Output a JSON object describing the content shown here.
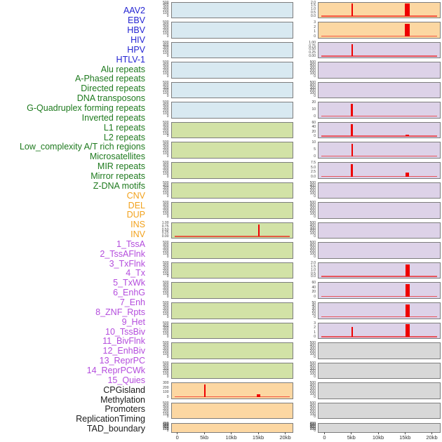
{
  "colors": {
    "category_text": {
      "virus": "#2525d2",
      "repeat": "#1e7a1e",
      "sv": "#f2a21d",
      "chromhmm": "#b44ddd",
      "other": "#1b1b1b"
    },
    "panel_bg": {
      "virus": "#d8e9f1",
      "repeat": "#d2e2a6",
      "sv": "#fcd7a2",
      "chromhmm": "#ddd2e8",
      "other": "#d8d8d8"
    },
    "signal": "#ee0000",
    "baseline": "rgba(238,0,0,0.6)",
    "panel_border": "#7d7d7d",
    "axis_text": "#3f3f3f"
  },
  "row_labels": [
    {
      "text": "AAV2",
      "category": "virus"
    },
    {
      "text": "EBV",
      "category": "virus"
    },
    {
      "text": "HBV",
      "category": "virus"
    },
    {
      "text": "HIV",
      "category": "virus"
    },
    {
      "text": "HPV",
      "category": "virus"
    },
    {
      "text": "HTLV-1",
      "category": "virus"
    },
    {
      "text": "Alu repeats",
      "category": "repeat"
    },
    {
      "text": "A-Phased repeats",
      "category": "repeat"
    },
    {
      "text": "Directed repeats",
      "category": "repeat"
    },
    {
      "text": "DNA transposons",
      "category": "repeat"
    },
    {
      "text": "G-Quadruplex forming repeats",
      "category": "repeat"
    },
    {
      "text": "Inverted repeats",
      "category": "repeat"
    },
    {
      "text": "L1 repeats",
      "category": "repeat"
    },
    {
      "text": "L2 repeats",
      "category": "repeat"
    },
    {
      "text": "Low_complexity A/T rich regions",
      "category": "repeat"
    },
    {
      "text": "Microsatellites",
      "category": "repeat"
    },
    {
      "text": "MIR repeats",
      "category": "repeat"
    },
    {
      "text": "Mirror repeats",
      "category": "repeat"
    },
    {
      "text": "Z-DNA motifs",
      "category": "repeat"
    },
    {
      "text": "CNV",
      "category": "sv"
    },
    {
      "text": "DEL",
      "category": "sv"
    },
    {
      "text": "DUP",
      "category": "sv"
    },
    {
      "text": "INS",
      "category": "sv"
    },
    {
      "text": "INV",
      "category": "sv"
    },
    {
      "text": "1_TssA",
      "category": "chromhmm"
    },
    {
      "text": "2_TssAFlnk",
      "category": "chromhmm"
    },
    {
      "text": "3_TxFlnk",
      "category": "chromhmm"
    },
    {
      "text": "4_Tx",
      "category": "chromhmm"
    },
    {
      "text": "5_TxWk",
      "category": "chromhmm"
    },
    {
      "text": "6_EnhG",
      "category": "chromhmm"
    },
    {
      "text": "7_Enh",
      "category": "chromhmm"
    },
    {
      "text": "8_ZNF_Rpts",
      "category": "chromhmm"
    },
    {
      "text": "9_Het",
      "category": "chromhmm"
    },
    {
      "text": "10_TssBiv",
      "category": "chromhmm"
    },
    {
      "text": "11_BivFlnk",
      "category": "chromhmm"
    },
    {
      "text": "12_EnhBiv",
      "category": "chromhmm"
    },
    {
      "text": "13_ReprPC",
      "category": "chromhmm"
    },
    {
      "text": "14_ReprPCWk",
      "category": "chromhmm"
    },
    {
      "text": "15_Quies",
      "category": "chromhmm"
    },
    {
      "text": "CPGisland",
      "category": "other"
    },
    {
      "text": "Methylation",
      "category": "other"
    },
    {
      "text": "Promoters",
      "category": "other"
    },
    {
      "text": "ReplicationTiming",
      "category": "other"
    },
    {
      "text": "TAD_boundary",
      "category": "other"
    }
  ],
  "chart_data": {
    "type": "bar",
    "description": "Two columns of 22 genomic signal mini-tracks (column-major order over the 44 row labels); red spikes mark signal peaks near 5kb and 15kb",
    "x_axis": {
      "tick_labels": [
        "0",
        "5kb",
        "10kb",
        "15kb",
        "20kb"
      ],
      "tick_kb": [
        0,
        5,
        10,
        15,
        20
      ],
      "range_kb": [
        0,
        20
      ]
    },
    "panels": [
      {
        "feature": "AAV2",
        "col": 0,
        "row": 1,
        "category": "virus",
        "y_ticks": [
          "500",
          "400",
          "300",
          "200",
          "100",
          "0"
        ],
        "baseline": false,
        "peaks": []
      },
      {
        "feature": "EBV",
        "col": 0,
        "row": 2,
        "category": "virus",
        "y_ticks": [
          "500",
          "400",
          "300",
          "200",
          "100",
          "0"
        ],
        "baseline": false,
        "peaks": []
      },
      {
        "feature": "HBV",
        "col": 0,
        "row": 3,
        "category": "virus",
        "y_ticks": [
          "500",
          "400",
          "300",
          "200",
          "100",
          "0"
        ],
        "baseline": false,
        "peaks": []
      },
      {
        "feature": "HIV",
        "col": 0,
        "row": 4,
        "category": "virus",
        "y_ticks": [
          "500",
          "400",
          "300",
          "200",
          "100",
          "0"
        ],
        "baseline": false,
        "peaks": []
      },
      {
        "feature": "HPV",
        "col": 0,
        "row": 5,
        "category": "virus",
        "y_ticks": [
          "500",
          "400",
          "300",
          "200",
          "100",
          "0"
        ],
        "baseline": false,
        "peaks": []
      },
      {
        "feature": "HTLV-1",
        "col": 0,
        "row": 6,
        "category": "virus",
        "y_ticks": [
          "500",
          "400",
          "300",
          "200",
          "100",
          "0"
        ],
        "baseline": false,
        "peaks": []
      },
      {
        "feature": "Alu repeats",
        "col": 0,
        "row": 7,
        "category": "repeat",
        "y_ticks": [
          "500",
          "400",
          "300",
          "200",
          "100",
          "0"
        ],
        "baseline": false,
        "peaks": []
      },
      {
        "feature": "A-Phased repeats",
        "col": 0,
        "row": 8,
        "category": "repeat",
        "y_ticks": [
          "500",
          "400",
          "300",
          "200",
          "100",
          "0"
        ],
        "baseline": false,
        "peaks": []
      },
      {
        "feature": "Directed repeats",
        "col": 0,
        "row": 9,
        "category": "repeat",
        "y_ticks": [
          "500",
          "400",
          "300",
          "200",
          "100",
          "0"
        ],
        "baseline": false,
        "peaks": []
      },
      {
        "feature": "DNA transposons",
        "col": 0,
        "row": 10,
        "category": "repeat",
        "y_ticks": [
          "500",
          "400",
          "300",
          "200",
          "100",
          "0"
        ],
        "baseline": false,
        "peaks": []
      },
      {
        "feature": "G-Quadruplex forming repeats",
        "col": 0,
        "row": 11,
        "category": "repeat",
        "y_ticks": [
          "500",
          "400",
          "300",
          "200",
          "100",
          "0"
        ],
        "baseline": false,
        "peaks": []
      },
      {
        "feature": "Inverted repeats",
        "col": 0,
        "row": 12,
        "category": "repeat",
        "y_ticks": [
          "1.00",
          "0.75",
          "0.50",
          "0.25",
          "0.00"
        ],
        "baseline": true,
        "peaks": [
          {
            "kb": 15.1,
            "value": 0.95,
            "frac": 0.95,
            "w": 2.5
          }
        ]
      },
      {
        "feature": "L1 repeats",
        "col": 0,
        "row": 13,
        "category": "repeat",
        "y_ticks": [
          "500",
          "400",
          "300",
          "200",
          "100",
          "0"
        ],
        "baseline": false,
        "peaks": []
      },
      {
        "feature": "L2 repeats",
        "col": 0,
        "row": 14,
        "category": "repeat",
        "y_ticks": [
          "500",
          "400",
          "300",
          "200",
          "100",
          "0"
        ],
        "baseline": false,
        "peaks": []
      },
      {
        "feature": "Low_complexity A/T rich regions",
        "col": 0,
        "row": 15,
        "category": "repeat",
        "y_ticks": [
          "500",
          "400",
          "300",
          "200",
          "100",
          "0"
        ],
        "baseline": false,
        "peaks": []
      },
      {
        "feature": "Microsatellites",
        "col": 0,
        "row": 16,
        "category": "repeat",
        "y_ticks": [
          "500",
          "400",
          "300",
          "200",
          "100",
          "0"
        ],
        "baseline": false,
        "peaks": []
      },
      {
        "feature": "MIR repeats",
        "col": 0,
        "row": 17,
        "category": "repeat",
        "y_ticks": [
          "500",
          "400",
          "300",
          "200",
          "100",
          "0"
        ],
        "baseline": false,
        "peaks": []
      },
      {
        "feature": "Mirror repeats",
        "col": 0,
        "row": 18,
        "category": "repeat",
        "y_ticks": [
          "500",
          "400",
          "300",
          "200",
          "100",
          "0"
        ],
        "baseline": false,
        "peaks": []
      },
      {
        "feature": "Z-DNA motifs",
        "col": 0,
        "row": 19,
        "category": "repeat",
        "y_ticks": [
          "500",
          "400",
          "300",
          "200",
          "100",
          "0"
        ],
        "baseline": false,
        "peaks": []
      },
      {
        "feature": "CNV",
        "col": 0,
        "row": 20,
        "category": "sv",
        "y_ticks": [
          "300",
          "200",
          "100",
          "0"
        ],
        "baseline": true,
        "peaks": [
          {
            "kb": 5.1,
            "value": 290,
            "frac": 0.95,
            "w": 2.5
          },
          {
            "kb": 15.1,
            "value": 63,
            "frac": 0.21,
            "w": 5
          }
        ]
      },
      {
        "feature": "DEL",
        "col": 0,
        "row": 21,
        "category": "sv",
        "y_ticks": [
          "500",
          "400",
          "300",
          "200",
          "100",
          "0"
        ],
        "baseline": false,
        "peaks": []
      },
      {
        "feature": "DUP",
        "col": 0,
        "row": 22,
        "category": "sv",
        "y_ticks": [
          "700",
          "600",
          "500",
          "400",
          "300",
          "200",
          "100",
          "0"
        ],
        "baseline": false,
        "peaks": []
      },
      {
        "feature": "INS",
        "col": 1,
        "row": 1,
        "category": "sv",
        "y_ticks": [
          "2.0",
          "1.5",
          "1.0",
          "0.5",
          "0.0"
        ],
        "baseline": true,
        "peaks": [
          {
            "kb": 5.1,
            "value": 1.9,
            "frac": 0.95,
            "w": 2
          },
          {
            "kb": 15.45,
            "value": 1.95,
            "frac": 0.96,
            "w": 7
          }
        ]
      },
      {
        "feature": "INV",
        "col": 1,
        "row": 2,
        "category": "sv",
        "y_ticks": [
          "3",
          "2",
          "1",
          "0"
        ],
        "baseline": true,
        "peaks": [
          {
            "kb": 15.45,
            "value": 2.9,
            "frac": 0.96,
            "w": 7
          }
        ]
      },
      {
        "feature": "1_TssA",
        "col": 1,
        "row": 3,
        "category": "chromhmm",
        "y_ticks": [
          "1.00",
          "0.75",
          "0.50",
          "0.25",
          "0.00"
        ],
        "baseline": true,
        "peaks": [
          {
            "kb": 5.1,
            "value": 0.95,
            "frac": 0.95,
            "w": 2
          }
        ]
      },
      {
        "feature": "2_TssAFlnk",
        "col": 1,
        "row": 4,
        "category": "chromhmm",
        "y_ticks": [
          "500",
          "400",
          "300",
          "200",
          "100",
          "0"
        ],
        "baseline": false,
        "peaks": []
      },
      {
        "feature": "3_TxFlnk",
        "col": 1,
        "row": 5,
        "category": "chromhmm",
        "y_ticks": [
          "500",
          "400",
          "300",
          "200",
          "100",
          "0"
        ],
        "baseline": false,
        "peaks": []
      },
      {
        "feature": "4_Tx",
        "col": 1,
        "row": 6,
        "category": "chromhmm",
        "y_ticks": [
          "20",
          "10",
          "0"
        ],
        "baseline": true,
        "peaks": [
          {
            "kb": 5.1,
            "value": 19,
            "frac": 0.95,
            "w": 2.5
          }
        ]
      },
      {
        "feature": "5_TxWk",
        "col": 1,
        "row": 7,
        "category": "chromhmm",
        "y_ticks": [
          "60",
          "40",
          "20",
          "0"
        ],
        "baseline": true,
        "peaks": [
          {
            "kb": 5.1,
            "value": 57,
            "frac": 0.95,
            "w": 2.5
          },
          {
            "kb": 15.45,
            "value": 8,
            "frac": 0.13,
            "w": 5
          }
        ]
      },
      {
        "feature": "6_EnhG",
        "col": 1,
        "row": 8,
        "category": "chromhmm",
        "y_ticks": [
          "10",
          "5",
          "0"
        ],
        "baseline": true,
        "peaks": [
          {
            "kb": 5.1,
            "value": 9.5,
            "frac": 0.95,
            "w": 2
          }
        ]
      },
      {
        "feature": "7_Enh",
        "col": 1,
        "row": 9,
        "category": "chromhmm",
        "y_ticks": [
          "7.5",
          "5.0",
          "2.5",
          "0.0"
        ],
        "baseline": true,
        "peaks": [
          {
            "kb": 5.1,
            "value": 7.2,
            "frac": 0.95,
            "w": 2.5
          },
          {
            "kb": 15.45,
            "value": 2.1,
            "frac": 0.28,
            "w": 5
          }
        ]
      },
      {
        "feature": "8_ZNF_Rpts",
        "col": 1,
        "row": 10,
        "category": "chromhmm",
        "y_ticks": [
          "500",
          "400",
          "300",
          "200",
          "100",
          "0"
        ],
        "baseline": false,
        "peaks": []
      },
      {
        "feature": "9_Het",
        "col": 1,
        "row": 11,
        "category": "chromhmm",
        "y_ticks": [
          "500",
          "400",
          "300",
          "200",
          "100",
          "0"
        ],
        "baseline": false,
        "peaks": []
      },
      {
        "feature": "10_TssBiv",
        "col": 1,
        "row": 12,
        "category": "chromhmm",
        "y_ticks": [
          "500",
          "400",
          "300",
          "200",
          "100",
          "0"
        ],
        "baseline": false,
        "peaks": []
      },
      {
        "feature": "11_BivFlnk",
        "col": 1,
        "row": 13,
        "category": "chromhmm",
        "y_ticks": [
          "500",
          "400",
          "300",
          "200",
          "100",
          "0"
        ],
        "baseline": false,
        "peaks": []
      },
      {
        "feature": "12_EnhBiv",
        "col": 1,
        "row": 14,
        "category": "chromhmm",
        "y_ticks": [
          "2.0",
          "1.5",
          "1.0",
          "0.5",
          "0.0"
        ],
        "baseline": true,
        "peaks": [
          {
            "kb": 15.45,
            "value": 1.95,
            "frac": 0.96,
            "w": 6
          }
        ]
      },
      {
        "feature": "13_ReprPC",
        "col": 1,
        "row": 15,
        "category": "chromhmm",
        "y_ticks": [
          "60",
          "40",
          "20",
          "0"
        ],
        "baseline": true,
        "peaks": [
          {
            "kb": 15.45,
            "value": 58,
            "frac": 0.96,
            "w": 6
          }
        ]
      },
      {
        "feature": "14_ReprPCWk",
        "col": 1,
        "row": 16,
        "category": "chromhmm",
        "y_ticks": [
          "50",
          "40",
          "30",
          "20",
          "10",
          "0"
        ],
        "baseline": true,
        "peaks": [
          {
            "kb": 15.45,
            "value": 48,
            "frac": 0.96,
            "w": 6
          }
        ]
      },
      {
        "feature": "15_Quies",
        "col": 1,
        "row": 17,
        "category": "chromhmm",
        "y_ticks": [
          "3",
          "2",
          "1",
          "0"
        ],
        "baseline": true,
        "peaks": [
          {
            "kb": 5.1,
            "value": 2.3,
            "frac": 0.77,
            "w": 2
          },
          {
            "kb": 15.45,
            "value": 2.9,
            "frac": 0.96,
            "w": 6
          }
        ]
      },
      {
        "feature": "CPGisland",
        "col": 1,
        "row": 18,
        "category": "other",
        "y_ticks": [
          "500",
          "400",
          "300",
          "200",
          "100",
          "0"
        ],
        "baseline": false,
        "peaks": []
      },
      {
        "feature": "Methylation",
        "col": 1,
        "row": 19,
        "category": "other",
        "y_ticks": [
          "500",
          "400",
          "300",
          "200",
          "100",
          "0"
        ],
        "baseline": false,
        "peaks": []
      },
      {
        "feature": "Promoters",
        "col": 1,
        "row": 20,
        "category": "other",
        "y_ticks": [
          "500",
          "400",
          "300",
          "200",
          "100",
          "0"
        ],
        "baseline": false,
        "peaks": []
      },
      {
        "feature": "ReplicationTiming",
        "col": 1,
        "row": 21,
        "category": "other",
        "y_ticks": [
          "500",
          "400",
          "300",
          "200",
          "100",
          "0"
        ],
        "baseline": false,
        "peaks": []
      },
      {
        "feature": "TAD_boundary",
        "col": 1,
        "row": 22,
        "category": "other",
        "y_ticks": [
          "700",
          "600",
          "500",
          "400",
          "300",
          "200",
          "100",
          "0"
        ],
        "baseline": false,
        "peaks": []
      }
    ]
  }
}
